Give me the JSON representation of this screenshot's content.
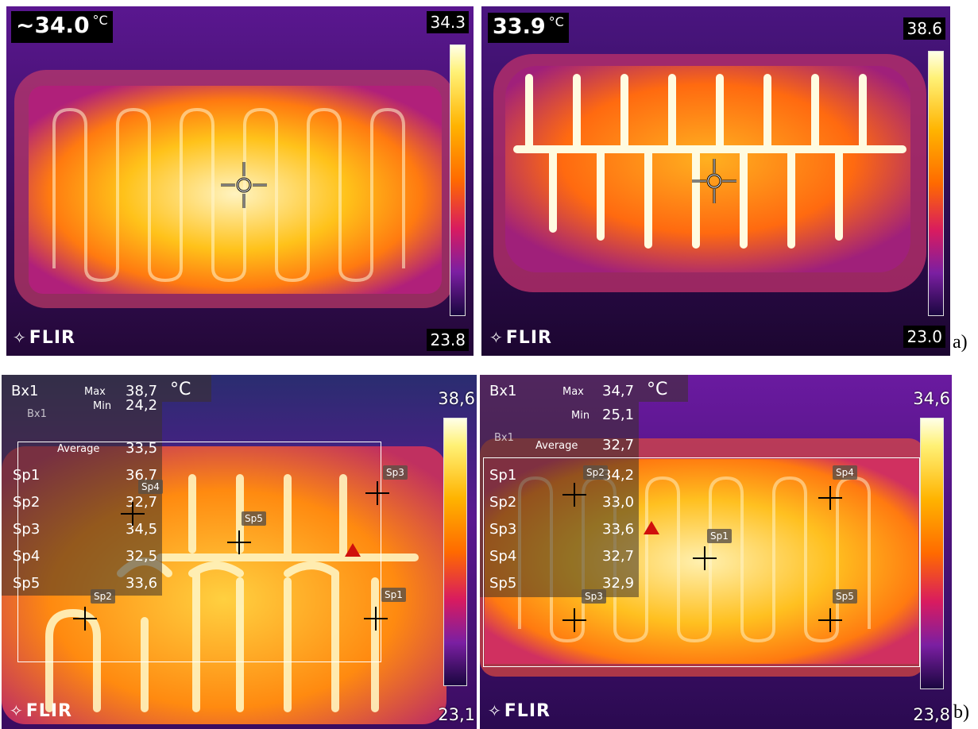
{
  "panels": [
    {
      "id": "a1",
      "spot_temp": "~34.0",
      "unit": "°C",
      "scale_max": "34.3",
      "scale_min": "23.8",
      "brand": "FLIR"
    },
    {
      "id": "a2",
      "spot_temp": "33.9",
      "unit": "°C",
      "scale_max": "38.6",
      "scale_min": "23.0",
      "brand": "FLIR"
    },
    {
      "id": "b1",
      "unit": "°C",
      "scale_max": "38,6",
      "scale_min": "23,1",
      "brand": "FLIR",
      "box_label": "Bx1",
      "box_tag": "Bx1",
      "stats": {
        "max_label": "Max",
        "max": "38,7",
        "min_label": "Min",
        "min": "24,2",
        "avg_label": "Average",
        "avg": "33,5"
      },
      "spots": [
        {
          "name": "Sp1",
          "value": "36,7"
        },
        {
          "name": "Sp2",
          "value": "32,7"
        },
        {
          "name": "Sp3",
          "value": "34,5"
        },
        {
          "name": "Sp4",
          "value": "32,5"
        },
        {
          "name": "Sp5",
          "value": "33,6"
        }
      ],
      "tags": [
        "Sp4",
        "Sp3",
        "Sp5",
        "Sp2",
        "Sp1"
      ]
    },
    {
      "id": "b2",
      "unit": "°C",
      "scale_max": "34,6",
      "scale_min": "23,8",
      "brand": "FLIR",
      "box_label": "Bx1",
      "box_tag": "Bx1",
      "stats": {
        "max_label": "Max",
        "max": "34,7",
        "min_label": "Min",
        "min": "25,1",
        "avg_label": "Average",
        "avg": "32,7"
      },
      "spots": [
        {
          "name": "Sp1",
          "value": "34,2"
        },
        {
          "name": "Sp2",
          "value": "33,0"
        },
        {
          "name": "Sp3",
          "value": "33,6"
        },
        {
          "name": "Sp4",
          "value": "32,7"
        },
        {
          "name": "Sp5",
          "value": "32,9"
        }
      ],
      "tags": [
        "Sp2",
        "Sp4",
        "Sp1",
        "Sp3",
        "Sp5"
      ]
    }
  ],
  "captions": {
    "a": "a)",
    "b": "b)"
  }
}
